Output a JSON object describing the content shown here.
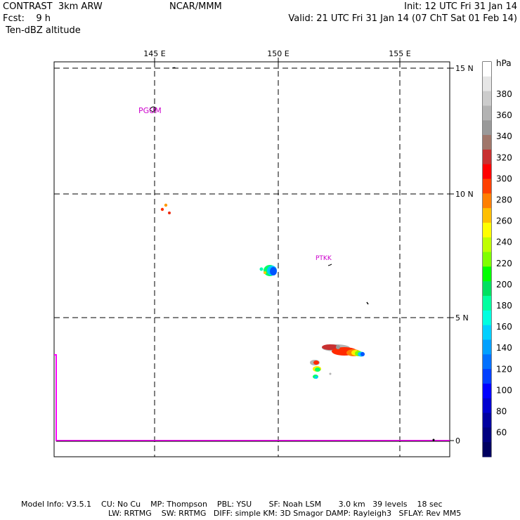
{
  "header": {
    "model": "CONTRAST  3km ARW",
    "org": "NCAR/MMM",
    "init": "Init: 12 UTC Fri 31 Jan 14",
    "fcst": "Fcst:    9 h",
    "valid": "Valid: 21 UTC Fri 31 Jan 14 (07 ChT Sat 01 Feb 14)",
    "field": "Ten-dBZ altitude"
  },
  "map": {
    "lon_ticks": [
      "145 E",
      "150 E",
      "155 E"
    ],
    "lat_ticks": [
      "15 N",
      "10 N",
      "5 N",
      "0"
    ],
    "stations": [
      "PGUM",
      "PTKK"
    ]
  },
  "colorbar": {
    "unit": "hPa",
    "labels": [
      "380",
      "360",
      "340",
      "320",
      "300",
      "280",
      "260",
      "240",
      "220",
      "200",
      "180",
      "160",
      "140",
      "120",
      "100",
      "80",
      "60"
    ],
    "colors": [
      "#ffffff",
      "#e6e6e6",
      "#cccccc",
      "#b3b3b3",
      "#999999",
      "#a0766a",
      "#c83030",
      "#ff0000",
      "#ff4000",
      "#ff7f00",
      "#ffbf00",
      "#ffff00",
      "#bfff00",
      "#7fff00",
      "#00ff00",
      "#00e060",
      "#00ffa0",
      "#00ffe0",
      "#00d0ff",
      "#00a0ff",
      "#0070ff",
      "#0040ff",
      "#0000ff",
      "#0000d0",
      "#0000a0",
      "#000080",
      "#000060"
    ]
  },
  "footer": {
    "line1": "Model Info: V3.5.1    CU: No Cu    MP: Thompson    PBL: YSU       SF: Noah LSM       3.0 km   39 levels    18 sec",
    "line2": "LW: RRTMG    SW: RRTMG   DIFF: simple KM: 3D Smagor DAMP: Rayleigh3   SFLAY: Rev MM5"
  }
}
